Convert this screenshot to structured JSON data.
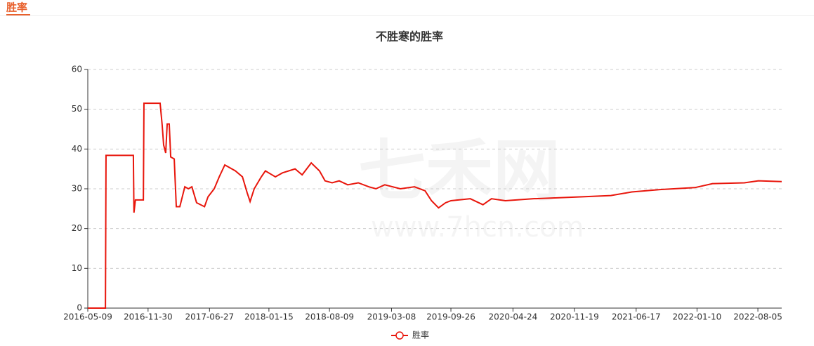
{
  "tab": "胜率",
  "watermark": {
    "brand": "七禾网",
    "url": "www.7hcn.com"
  },
  "chart_data": {
    "type": "line",
    "title": "不胜寒的胜率",
    "grid": true,
    "legend": "bottom",
    "xlim": [
      "2016-05-09",
      "2022-10-25"
    ],
    "xticks": [
      "2016-05-09",
      "2016-11-30",
      "2017-06-27",
      "2018-01-15",
      "2018-08-09",
      "2019-03-08",
      "2019-09-26",
      "2020-04-24",
      "2020-11-19",
      "2021-06-17",
      "2022-01-10",
      "2022-08-05"
    ],
    "ylim": [
      0,
      60
    ],
    "yticks": [
      0,
      10,
      20,
      30,
      40,
      50,
      60
    ],
    "x": [
      "2016-05-09",
      "2016-07-08",
      "2016-07-10",
      "2016-10-11",
      "2016-10-13",
      "2016-10-18",
      "2016-11-14",
      "2016-11-16",
      "2017-01-10",
      "2017-01-17",
      "2017-01-22",
      "2017-01-29",
      "2017-02-03",
      "2017-02-10",
      "2017-02-15",
      "2017-02-27",
      "2017-03-06",
      "2017-03-18",
      "2017-04-04",
      "2017-04-16",
      "2017-04-28",
      "2017-05-14",
      "2017-06-10",
      "2017-06-22",
      "2017-07-13",
      "2017-07-30",
      "2017-08-18",
      "2017-09-23",
      "2017-10-17",
      "2017-11-02",
      "2017-11-12",
      "2017-11-26",
      "2017-12-20",
      "2018-01-03",
      "2018-02-06",
      "2018-03-02",
      "2018-04-14",
      "2018-05-08",
      "2018-06-08",
      "2018-07-06",
      "2018-07-25",
      "2018-08-18",
      "2018-09-11",
      "2018-10-10",
      "2018-11-15",
      "2018-12-21",
      "2019-01-14",
      "2019-02-13",
      "2019-04-07",
      "2019-05-25",
      "2019-06-30",
      "2019-07-22",
      "2019-08-15",
      "2019-09-08",
      "2019-09-26",
      "2019-12-01",
      "2020-01-13",
      "2020-02-11",
      "2020-03-29",
      "2020-07-03",
      "2020-09-13",
      "2020-12-17",
      "2021-03-23",
      "2021-06-02",
      "2021-09-06",
      "2022-01-03",
      "2022-03-04",
      "2022-06-20",
      "2022-08-07",
      "2022-10-25"
    ],
    "series": [
      {
        "name": "胜率",
        "color": "#e8160c",
        "values": [
          0,
          0,
          38.4,
          38.4,
          24,
          27.2,
          27.2,
          51.5,
          51.5,
          46,
          41,
          39,
          46.3,
          46.3,
          38,
          37.5,
          25.5,
          25.5,
          30.5,
          30,
          30.5,
          26.5,
          25.5,
          28,
          30,
          33,
          36,
          34.5,
          33,
          29,
          26.8,
          30,
          33,
          34.5,
          33,
          34,
          35,
          33.5,
          36.5,
          34.5,
          32,
          31.5,
          32,
          31,
          31.5,
          30.5,
          30,
          31,
          30,
          30.5,
          29.5,
          27,
          25.2,
          26.5,
          27,
          27.5,
          26,
          27.5,
          27,
          27.5,
          27.7,
          28,
          28.3,
          29.2,
          29.8,
          30.3,
          31.3,
          31.5,
          32,
          31.8
        ]
      }
    ]
  }
}
